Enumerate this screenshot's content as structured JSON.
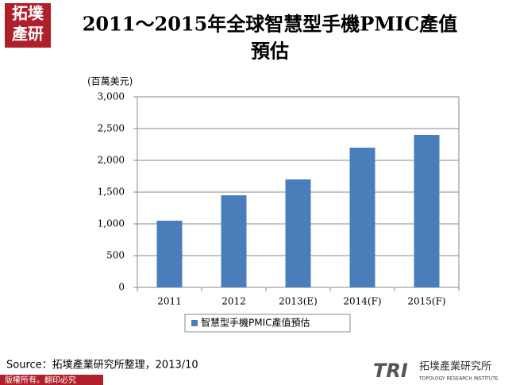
{
  "logo": {
    "top": "拓墣",
    "bottom": "產研"
  },
  "brand": {
    "mark": "TRI",
    "name": "拓墣產業研究所",
    "english": "TOPOLOGY RESEARCH INSTITUTE"
  },
  "footer": "版權所有。翻印必究",
  "chart_data": {
    "type": "bar",
    "title_lines": [
      "2011～2015年全球智慧型手機PMIC產值",
      "預估"
    ],
    "y_label": "(百萬美元)",
    "categories": [
      "2011",
      "2012",
      "2013(E)",
      "2014(F)",
      "2015(F)"
    ],
    "series": [
      {
        "name": "智慧型手機PMIC產值預估",
        "color": "#4a7ebb",
        "values": [
          1050,
          1450,
          1700,
          2200,
          2400
        ]
      }
    ],
    "ylim": [
      0,
      3000
    ],
    "yticks": [
      0,
      500,
      {
        "value": 1000,
        "label": "1,000"
      },
      {
        "value": 1500,
        "label": "1,500"
      },
      {
        "value": 2000,
        "label": "2,000"
      },
      {
        "value": 2500,
        "label": "2,500"
      },
      {
        "value": 3000,
        "label": "3,000"
      }
    ],
    "grid": true,
    "legend": "bottom",
    "source": "Source：拓墣產業研究所整理，2013/10"
  }
}
